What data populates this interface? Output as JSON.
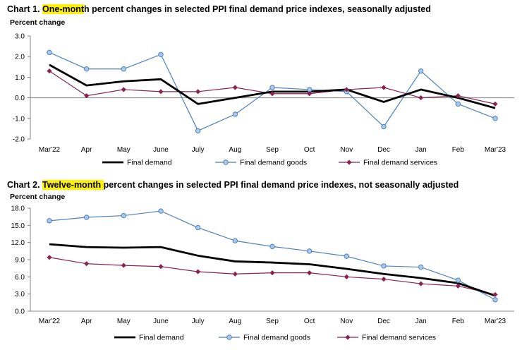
{
  "chart_data": [
    {
      "type": "line",
      "title_prefix": "Chart 1. ",
      "title_highlight": "One-mont",
      "title_rest": "h percent changes in selected PPI final demand price indexes, seasonally adjusted",
      "ylabel": "Percent change",
      "categories": [
        "Mar'22",
        "Apr",
        "May",
        "June",
        "July",
        "Aug",
        "Sep",
        "Oct",
        "Nov",
        "Dec",
        "Jan",
        "Feb",
        "Mar'23"
      ],
      "ylim": [
        -2.0,
        3.0
      ],
      "yticks": [
        "3.0",
        "2.0",
        "1.0",
        "0.0",
        "-1.0",
        "-2.0"
      ],
      "series": [
        {
          "name": "Final demand",
          "color": "#000000",
          "values": [
            1.6,
            0.6,
            0.8,
            0.9,
            -0.3,
            0.0,
            0.3,
            0.3,
            0.4,
            -0.2,
            0.4,
            0.0,
            -0.5
          ]
        },
        {
          "name": "Final demand goods",
          "color": "#4f81bd",
          "values": [
            2.2,
            1.4,
            1.4,
            2.1,
            -1.6,
            -0.8,
            0.5,
            0.4,
            0.3,
            -1.4,
            1.3,
            -0.3,
            -1.0
          ]
        },
        {
          "name": "Final demand services",
          "color": "#8b2252",
          "values": [
            1.3,
            0.1,
            0.4,
            0.3,
            0.3,
            0.5,
            0.2,
            0.2,
            0.4,
            0.5,
            0.0,
            0.1,
            -0.3
          ]
        }
      ]
    },
    {
      "type": "line",
      "title_prefix": "Chart 2. ",
      "title_highlight": "Twelve-month ",
      "title_rest": "percent changes in selected PPI final demand price indexes, not seasonally adjusted",
      "ylabel": "Percent change",
      "categories": [
        "Mar'22",
        "Apr",
        "May",
        "June",
        "July",
        "Aug",
        "Sep",
        "Oct",
        "Nov",
        "Dec",
        "Jan",
        "Feb",
        "Mar'23"
      ],
      "ylim": [
        0.0,
        18.0
      ],
      "yticks": [
        "18.0",
        "15.0",
        "12.0",
        "9.0",
        "6.0",
        "3.0",
        "0.0"
      ],
      "series": [
        {
          "name": "Final demand",
          "color": "#000000",
          "values": [
            11.7,
            11.2,
            11.1,
            11.2,
            9.7,
            8.7,
            8.5,
            8.2,
            7.4,
            6.5,
            5.8,
            4.9,
            2.7
          ]
        },
        {
          "name": "Final demand goods",
          "color": "#4f81bd",
          "values": [
            15.8,
            16.4,
            16.7,
            17.5,
            14.6,
            12.3,
            11.3,
            10.5,
            9.6,
            7.9,
            7.7,
            5.4,
            2.0
          ]
        },
        {
          "name": "Final demand services",
          "color": "#8b2252",
          "values": [
            9.4,
            8.3,
            8.0,
            7.8,
            6.9,
            6.5,
            6.7,
            6.7,
            6.0,
            5.6,
            4.8,
            4.4,
            2.9
          ]
        }
      ]
    }
  ]
}
